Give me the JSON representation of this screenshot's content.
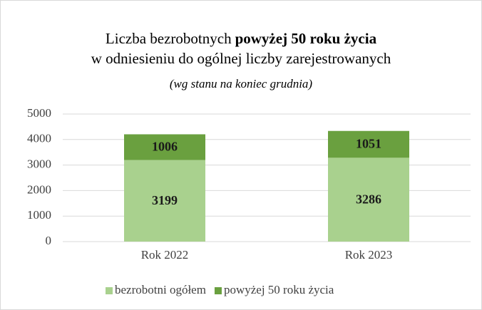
{
  "chart_data": {
    "type": "stacked_bar",
    "title": [
      "Liczba bezrobotnych",
      "powyżej 50 roku życia",
      "w odniesieniu do ogólnej liczby zarejestrowanych"
    ],
    "subtitle": "(wg stanu na koniec grudnia)",
    "categories": [
      "Rok 2022",
      "Rok 2023"
    ],
    "series": [
      {
        "name": "bezrobotni ogółem",
        "color": "#a9d18e",
        "values": [
          3199,
          3286
        ]
      },
      {
        "name": "powyżej 50 roku życia",
        "color": "#6aa03f",
        "values": [
          1006,
          1051
        ]
      }
    ],
    "ylim": [
      0,
      5000
    ],
    "yticks": [
      0,
      1000,
      2000,
      3000,
      4000,
      5000
    ],
    "grid": true,
    "legend": "bottom"
  }
}
